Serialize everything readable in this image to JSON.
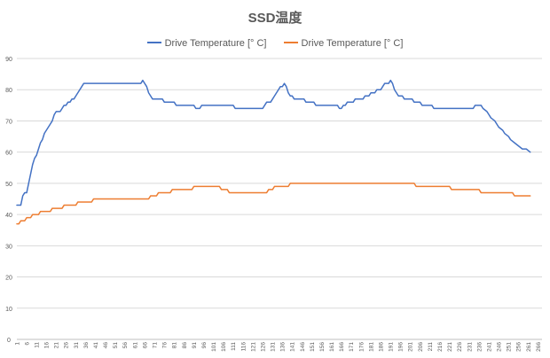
{
  "chart_data": {
    "type": "line",
    "title": "SSD温度",
    "xlabel": "",
    "ylabel": "",
    "ylim": [
      0,
      90
    ],
    "y_ticks": [
      0,
      10,
      20,
      30,
      40,
      50,
      60,
      70,
      80,
      90
    ],
    "x_range": [
      1,
      268
    ],
    "x_tick_labels": [
      1,
      6,
      11,
      16,
      21,
      26,
      31,
      36,
      41,
      46,
      51,
      56,
      61,
      66,
      71,
      76,
      81,
      86,
      91,
      96,
      101,
      106,
      111,
      116,
      121,
      126,
      131,
      136,
      141,
      146,
      151,
      156,
      161,
      166,
      171,
      176,
      181,
      186,
      191,
      196,
      201,
      206,
      211,
      216,
      221,
      226,
      231,
      236,
      241,
      246,
      251,
      256,
      261,
      266
    ],
    "grid": true,
    "legend_position": "top",
    "series": [
      {
        "name": "Drive Temperature [° C]",
        "color": "#4472C4",
        "points": [
          [
            1,
            43
          ],
          [
            3,
            43
          ],
          [
            4,
            46
          ],
          [
            5,
            47
          ],
          [
            6,
            47
          ],
          [
            7,
            50
          ],
          [
            8,
            53
          ],
          [
            9,
            56
          ],
          [
            10,
            58
          ],
          [
            11,
            59
          ],
          [
            12,
            61
          ],
          [
            13,
            63
          ],
          [
            14,
            64
          ],
          [
            15,
            66
          ],
          [
            16,
            67
          ],
          [
            17,
            68
          ],
          [
            18,
            69
          ],
          [
            19,
            70
          ],
          [
            20,
            72
          ],
          [
            21,
            73
          ],
          [
            22,
            73
          ],
          [
            23,
            73
          ],
          [
            24,
            74
          ],
          [
            25,
            75
          ],
          [
            26,
            75
          ],
          [
            27,
            76
          ],
          [
            28,
            76
          ],
          [
            29,
            77
          ],
          [
            30,
            77
          ],
          [
            31,
            78
          ],
          [
            32,
            79
          ],
          [
            33,
            80
          ],
          [
            34,
            81
          ],
          [
            35,
            82
          ],
          [
            36,
            82
          ],
          [
            64,
            82
          ],
          [
            65,
            83
          ],
          [
            66,
            82
          ],
          [
            67,
            81
          ],
          [
            68,
            79
          ],
          [
            69,
            78
          ],
          [
            70,
            77
          ],
          [
            75,
            77
          ],
          [
            76,
            76
          ],
          [
            81,
            76
          ],
          [
            82,
            75
          ],
          [
            91,
            75
          ],
          [
            92,
            74
          ],
          [
            94,
            74
          ],
          [
            95,
            75
          ],
          [
            111,
            75
          ],
          [
            112,
            74
          ],
          [
            126,
            74
          ],
          [
            127,
            75
          ],
          [
            128,
            76
          ],
          [
            130,
            76
          ],
          [
            131,
            77
          ],
          [
            132,
            78
          ],
          [
            133,
            79
          ],
          [
            134,
            80
          ],
          [
            135,
            81
          ],
          [
            136,
            81
          ],
          [
            137,
            82
          ],
          [
            138,
            81
          ],
          [
            139,
            79
          ],
          [
            140,
            78
          ],
          [
            141,
            78
          ],
          [
            142,
            77
          ],
          [
            147,
            77
          ],
          [
            148,
            76
          ],
          [
            152,
            76
          ],
          [
            153,
            75
          ],
          [
            164,
            75
          ],
          [
            165,
            74
          ],
          [
            166,
            74
          ],
          [
            167,
            75
          ],
          [
            168,
            75
          ],
          [
            169,
            76
          ],
          [
            172,
            76
          ],
          [
            173,
            77
          ],
          [
            177,
            77
          ],
          [
            178,
            78
          ],
          [
            180,
            78
          ],
          [
            181,
            79
          ],
          [
            183,
            79
          ],
          [
            184,
            80
          ],
          [
            186,
            80
          ],
          [
            187,
            81
          ],
          [
            188,
            82
          ],
          [
            190,
            82
          ],
          [
            191,
            83
          ],
          [
            192,
            82
          ],
          [
            193,
            80
          ],
          [
            194,
            79
          ],
          [
            195,
            78
          ],
          [
            197,
            78
          ],
          [
            198,
            77
          ],
          [
            202,
            77
          ],
          [
            203,
            76
          ],
          [
            206,
            76
          ],
          [
            207,
            75
          ],
          [
            212,
            75
          ],
          [
            213,
            74
          ],
          [
            233,
            74
          ],
          [
            234,
            75
          ],
          [
            237,
            75
          ],
          [
            238,
            74
          ],
          [
            240,
            73
          ],
          [
            241,
            72
          ],
          [
            242,
            71
          ],
          [
            244,
            70
          ],
          [
            245,
            69
          ],
          [
            246,
            68
          ],
          [
            248,
            67
          ],
          [
            249,
            66
          ],
          [
            251,
            65
          ],
          [
            252,
            64
          ],
          [
            254,
            63
          ],
          [
            256,
            62
          ],
          [
            258,
            61
          ],
          [
            260,
            61
          ],
          [
            262,
            60
          ]
        ]
      },
      {
        "name": "Drive Temperature [° C]",
        "color": "#ED7D31",
        "points": [
          [
            1,
            37
          ],
          [
            2,
            37
          ],
          [
            3,
            38
          ],
          [
            5,
            38
          ],
          [
            6,
            39
          ],
          [
            8,
            39
          ],
          [
            9,
            40
          ],
          [
            12,
            40
          ],
          [
            13,
            41
          ],
          [
            18,
            41
          ],
          [
            19,
            42
          ],
          [
            24,
            42
          ],
          [
            25,
            43
          ],
          [
            31,
            43
          ],
          [
            32,
            44
          ],
          [
            39,
            44
          ],
          [
            40,
            45
          ],
          [
            68,
            45
          ],
          [
            69,
            46
          ],
          [
            72,
            46
          ],
          [
            73,
            47
          ],
          [
            79,
            47
          ],
          [
            80,
            48
          ],
          [
            90,
            48
          ],
          [
            91,
            49
          ],
          [
            104,
            49
          ],
          [
            105,
            48
          ],
          [
            108,
            48
          ],
          [
            109,
            47
          ],
          [
            128,
            47
          ],
          [
            129,
            48
          ],
          [
            131,
            48
          ],
          [
            132,
            49
          ],
          [
            139,
            49
          ],
          [
            140,
            50
          ],
          [
            203,
            50
          ],
          [
            204,
            49
          ],
          [
            221,
            49
          ],
          [
            222,
            48
          ],
          [
            236,
            48
          ],
          [
            237,
            47
          ],
          [
            253,
            47
          ],
          [
            254,
            46
          ],
          [
            262,
            46
          ]
        ]
      }
    ]
  }
}
